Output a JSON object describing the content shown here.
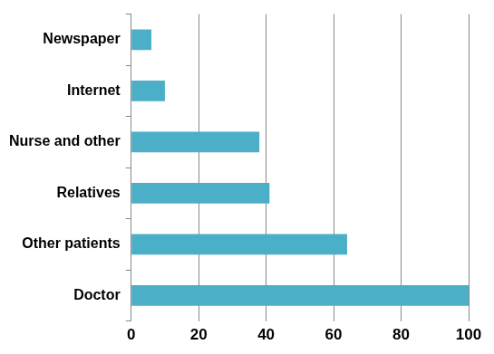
{
  "chart_data": {
    "type": "bar",
    "orientation": "horizontal",
    "categories": [
      "Newspaper",
      "Internet",
      "Nurse and other",
      "Relatives",
      "Other patients",
      "Doctor"
    ],
    "values": [
      6,
      10,
      38,
      41,
      64,
      100
    ],
    "color": "#4bafc8",
    "xlim": [
      0,
      100
    ],
    "xticks": [
      0,
      20,
      40,
      60,
      80,
      100
    ],
    "grid": true
  }
}
